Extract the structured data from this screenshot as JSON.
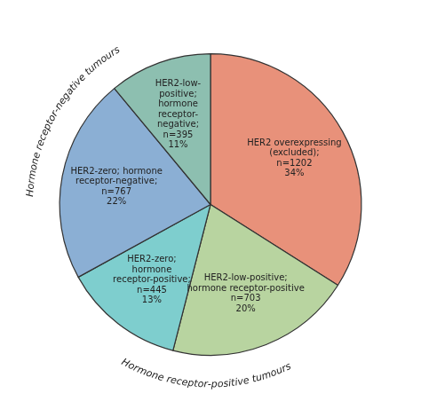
{
  "chart_data": {
    "type": "pie",
    "categories": [
      "HER2 overexpressing\n(excluded);\nn=1202\n34%",
      "HER2-low-positive;\nhormone receptor-positive\nn=703\n20%",
      "HER2-zero;\nhormone\nreceptor-positive;\nn=445\n13%",
      "HER2-zero; hormone\nreceptor-negative;\nn=767\n22%",
      "HER2-low-\npositive;\nhormone\nreceptor-\nnegative;\nn=395\n11%"
    ],
    "values": [
      34,
      20,
      13,
      22,
      11
    ],
    "colors": [
      "#E8917A",
      "#B8D4A0",
      "#7ECECE",
      "#8BAFD4",
      "#8DBFB0"
    ],
    "annotations": [
      "Hormone receptor-negative tumours",
      "Hormone receptor-positive tumours"
    ]
  }
}
